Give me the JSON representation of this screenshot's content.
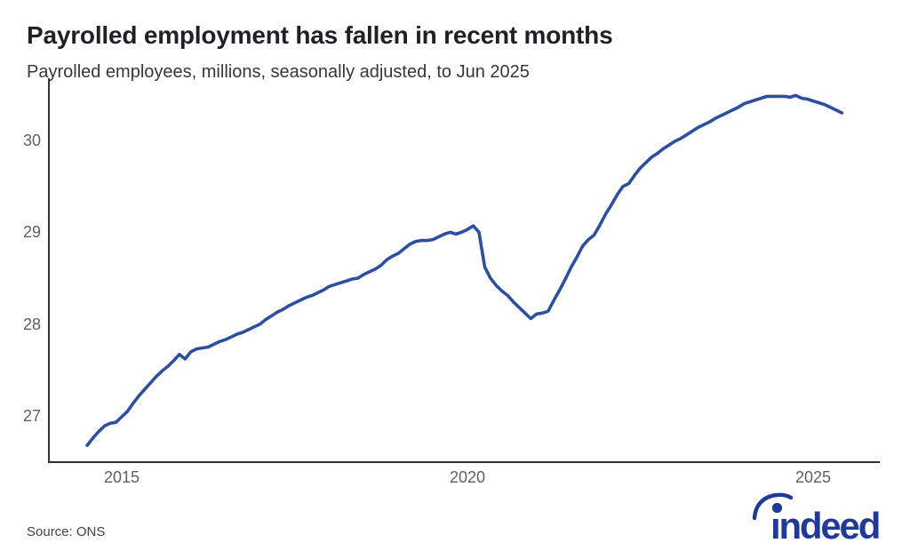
{
  "header": {
    "title": "Payrolled employment has fallen in recent months",
    "subtitle": "Payrolled employees, millions, seasonally adjusted, to Jun 2025"
  },
  "footer": {
    "source": "Source: ONS"
  },
  "logo": {
    "text": "indeed",
    "display_text": "ındeed",
    "color": "#1f3a9c"
  },
  "chart_data": {
    "type": "line",
    "title": "Payrolled employment has fallen in recent months",
    "subtitle": "Payrolled employees, millions, seasonally adjusted, to Jun 2025",
    "xlabel": "",
    "ylabel": "Payrolled employees, millions",
    "grid": false,
    "legend": "none",
    "line_color": "#2c4fa3",
    "axis_color": "#2f3235",
    "tick_color": "#5c6167",
    "x_ticks": [
      2015,
      2020,
      2025
    ],
    "y_ticks": [
      27,
      28,
      29,
      30
    ],
    "xlim_years": [
      2013.95,
      2025.96
    ],
    "ylim": [
      26.49,
      30.68
    ],
    "series": [
      {
        "name": "Payrolled employees (millions, seasonally adjusted)",
        "frequency": "monthly",
        "start_year": 2014,
        "start_month": 7,
        "end_label": "Jun 2025",
        "values": [
          26.68,
          26.76,
          26.83,
          26.89,
          26.92,
          26.93,
          26.99,
          27.05,
          27.14,
          27.22,
          27.29,
          27.36,
          27.43,
          27.49,
          27.54,
          27.6,
          27.67,
          27.62,
          27.7,
          27.73,
          27.74,
          27.75,
          27.78,
          27.81,
          27.83,
          27.86,
          27.89,
          27.91,
          27.94,
          27.97,
          28.0,
          28.05,
          28.09,
          28.13,
          28.16,
          28.2,
          28.23,
          28.26,
          28.29,
          28.31,
          28.34,
          28.37,
          28.41,
          28.43,
          28.45,
          28.47,
          28.49,
          28.5,
          28.54,
          28.57,
          28.6,
          28.64,
          28.7,
          28.74,
          28.77,
          28.82,
          28.87,
          28.9,
          28.91,
          28.91,
          28.92,
          28.95,
          28.98,
          29.0,
          28.98,
          29.0,
          29.03,
          29.07,
          29.0,
          28.62,
          28.5,
          28.42,
          28.36,
          28.31,
          28.24,
          28.18,
          28.12,
          28.06,
          28.11,
          28.12,
          28.14,
          28.26,
          28.37,
          28.49,
          28.62,
          28.73,
          28.85,
          28.92,
          28.97,
          29.08,
          29.2,
          29.3,
          29.41,
          29.5,
          29.53,
          29.62,
          29.7,
          29.76,
          29.82,
          29.86,
          29.91,
          29.95,
          29.99,
          30.02,
          30.06,
          30.1,
          30.14,
          30.17,
          30.2,
          30.24,
          30.27,
          30.3,
          30.33,
          30.36,
          30.4,
          30.42,
          30.44,
          30.46,
          30.48,
          30.48,
          30.48,
          30.48,
          30.47,
          30.49,
          30.46,
          30.45,
          30.43,
          30.41,
          30.39,
          30.36,
          30.33,
          30.3
        ]
      }
    ]
  }
}
